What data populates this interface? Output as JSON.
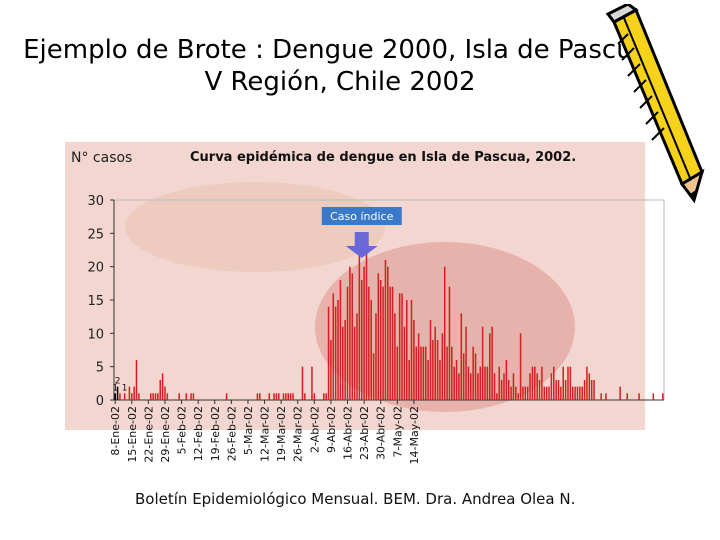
{
  "slide": {
    "title": "Ejemplo de Brote : Dengue 2000, Isla de Pascua, V Región, Chile 2002",
    "credit": "Boletín Epidemiológico Mensual. BEM. Dra. Andrea Olea N."
  },
  "chart_data": {
    "type": "bar",
    "title": "Curva epidémica de dengue en Isla de Pascua, 2002.",
    "ylabel": "N° casos",
    "xlabel": "",
    "ylim": [
      0,
      30
    ],
    "yticks": [
      0,
      5,
      10,
      15,
      20,
      25,
      30
    ],
    "grid": false,
    "colors": {
      "bars": "#d42020",
      "first_cases": "#000000",
      "annotation_bg": "#3a78c9",
      "arrow": "#6a68d8"
    },
    "x_tick_labels": [
      "8-Ene-02",
      "15-Ene-02",
      "22-Ene-02",
      "29-Ene-02",
      "5-Feb-02",
      "12-Feb-02",
      "19-Feb-02",
      "26-Feb-02",
      "5-Mar-02",
      "12-Mar-02",
      "19-Mar-02",
      "26-Mar-02",
      "2-Abr-02",
      "9-Abr-02",
      "16-Abr-02",
      "23-Abr-02",
      "30-Abr-02",
      "7-May-02",
      "14-May-02"
    ],
    "start_date": "2002-01-08",
    "values": [
      1,
      2,
      1,
      0,
      1,
      0,
      2,
      1,
      2,
      6,
      1,
      0,
      0,
      0,
      0,
      1,
      1,
      1,
      1,
      3,
      4,
      2,
      1,
      0,
      0,
      0,
      0,
      1,
      0,
      0,
      1,
      0,
      1,
      1,
      0,
      0,
      0,
      0,
      0,
      0,
      0,
      0,
      0,
      0,
      0,
      0,
      0,
      1,
      0,
      0,
      0,
      0,
      0,
      0,
      0,
      0,
      0,
      0,
      0,
      0,
      1,
      1,
      0,
      0,
      0,
      1,
      0,
      1,
      1,
      1,
      0,
      1,
      1,
      1,
      1,
      1,
      0,
      0,
      0,
      5,
      1,
      0,
      0,
      5,
      1,
      0,
      0,
      0,
      1,
      1,
      14,
      9,
      16,
      14,
      15,
      18,
      11,
      12,
      17,
      20,
      19,
      11,
      13,
      23,
      18,
      20,
      22,
      17,
      15,
      7,
      13,
      19,
      18,
      17,
      21,
      20,
      17,
      17,
      13,
      8,
      16,
      16,
      11,
      15,
      6,
      15,
      12,
      8,
      10,
      8,
      8,
      8,
      6,
      12,
      9,
      11,
      9,
      6,
      10,
      20,
      8,
      17,
      8,
      5,
      6,
      4,
      13,
      7,
      11,
      5,
      4,
      8,
      7,
      4,
      5,
      11,
      5,
      5,
      10,
      11,
      4,
      1,
      5,
      3,
      4,
      6,
      3,
      2,
      4,
      2,
      1,
      10,
      2,
      2,
      2,
      4,
      5,
      5,
      4,
      3,
      5,
      2,
      2,
      2,
      4,
      5,
      3,
      3,
      2,
      5,
      3,
      5,
      5,
      2,
      2,
      2,
      2,
      2,
      3,
      5,
      4,
      3,
      3,
      0,
      0,
      1,
      0,
      1,
      0,
      0,
      0,
      0,
      0,
      2,
      0,
      0,
      1,
      0,
      0,
      0,
      0,
      1,
      0,
      0,
      0,
      0,
      0,
      1,
      0,
      0,
      0,
      1
    ],
    "first_cases_count": 2,
    "data_labels": [
      {
        "index": 0,
        "text": "1"
      },
      {
        "index": 1,
        "text": "2"
      },
      {
        "index": 4,
        "text": "1"
      }
    ],
    "annotation": {
      "text": "Caso índice",
      "points_to_index": 104
    }
  }
}
